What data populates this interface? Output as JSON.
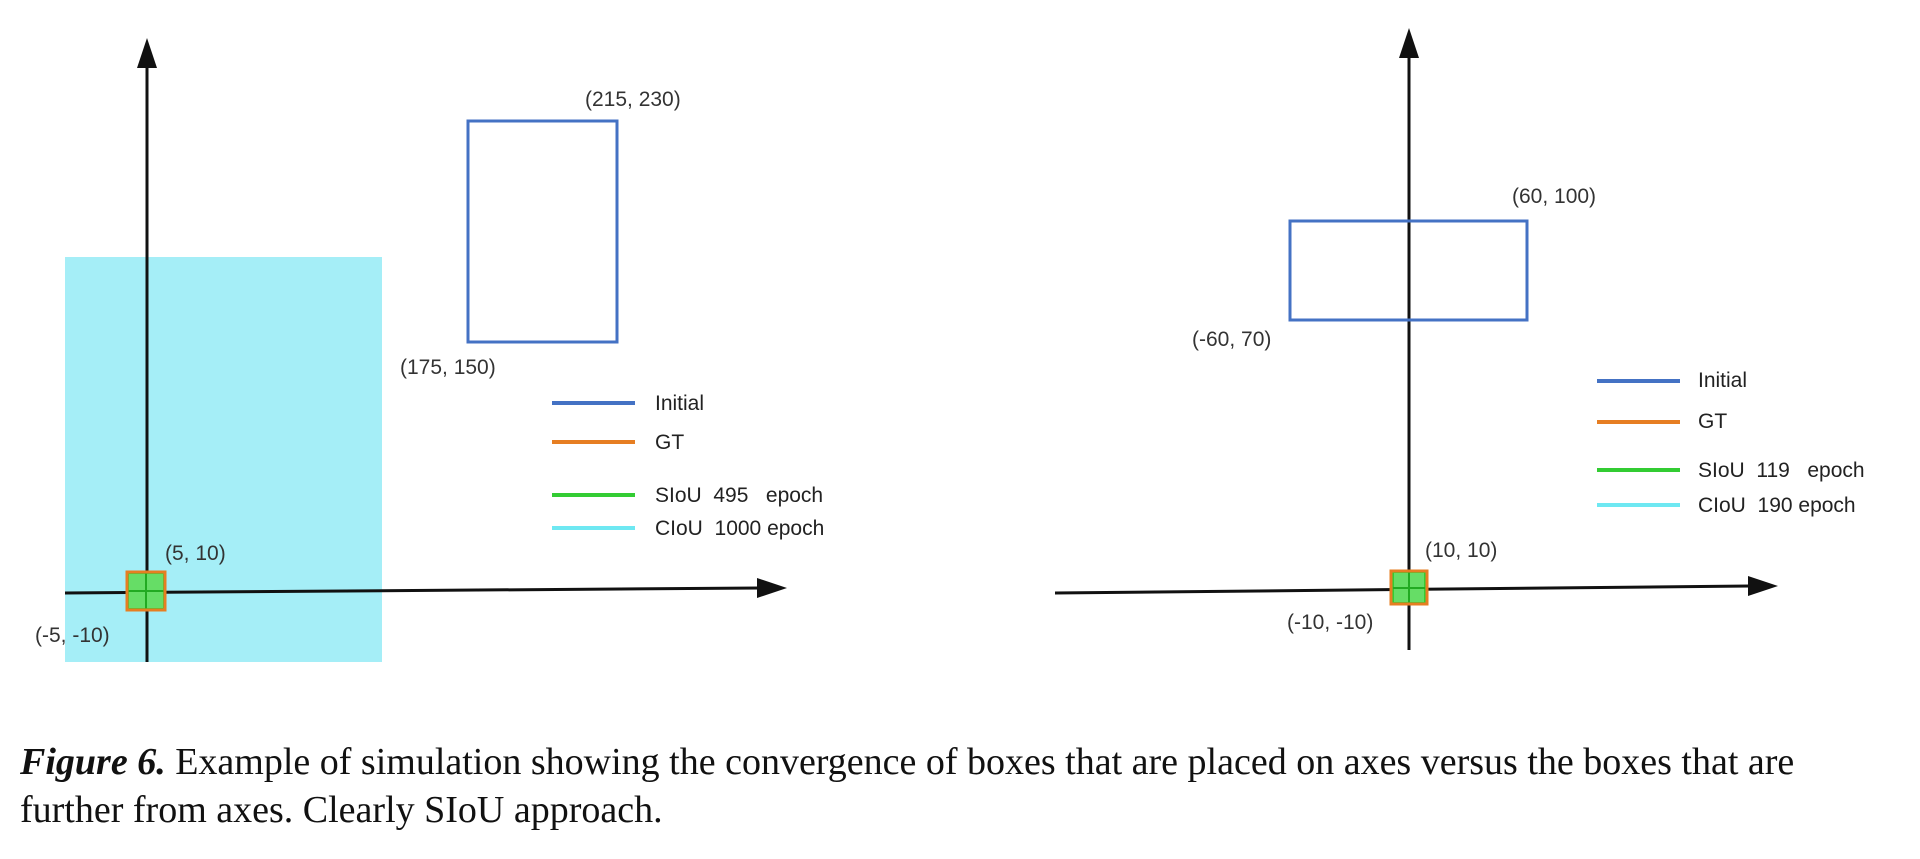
{
  "colors": {
    "initial": "#4472c4",
    "gt": "#e67e22",
    "siou": "#33cc33",
    "ciou": "#6ee8f2",
    "ciou_fill": "#a5eef7",
    "siou_fill": "#66dd66",
    "axis": "#111111"
  },
  "left_panel": {
    "coords": {
      "initial_top_right": "(215, 230)",
      "initial_bottom_left": "(175, 150)",
      "gt_top_right": "(5, 10)",
      "gt_bottom_left": "(-5, -10)"
    },
    "legend": {
      "initial": "Initial",
      "gt": "GT",
      "siou": "SIoU  495   epoch",
      "ciou": "CIoU  1000 epoch"
    }
  },
  "right_panel": {
    "coords": {
      "initial_top_right": "(60, 100)",
      "initial_bottom_left": "(-60, 70)",
      "gt_top_right": "(10, 10)",
      "gt_bottom_left": "(-10, -10)"
    },
    "legend": {
      "initial": "Initial",
      "gt": "GT",
      "siou": "SIoU  119   epoch",
      "ciou": "CIoU  190 epoch"
    }
  },
  "caption": {
    "label": "Figure 6.",
    "text": " Example of simulation showing the convergence of boxes that are placed on axes versus the boxes that are further from axes. Clearly SIoU approach."
  }
}
